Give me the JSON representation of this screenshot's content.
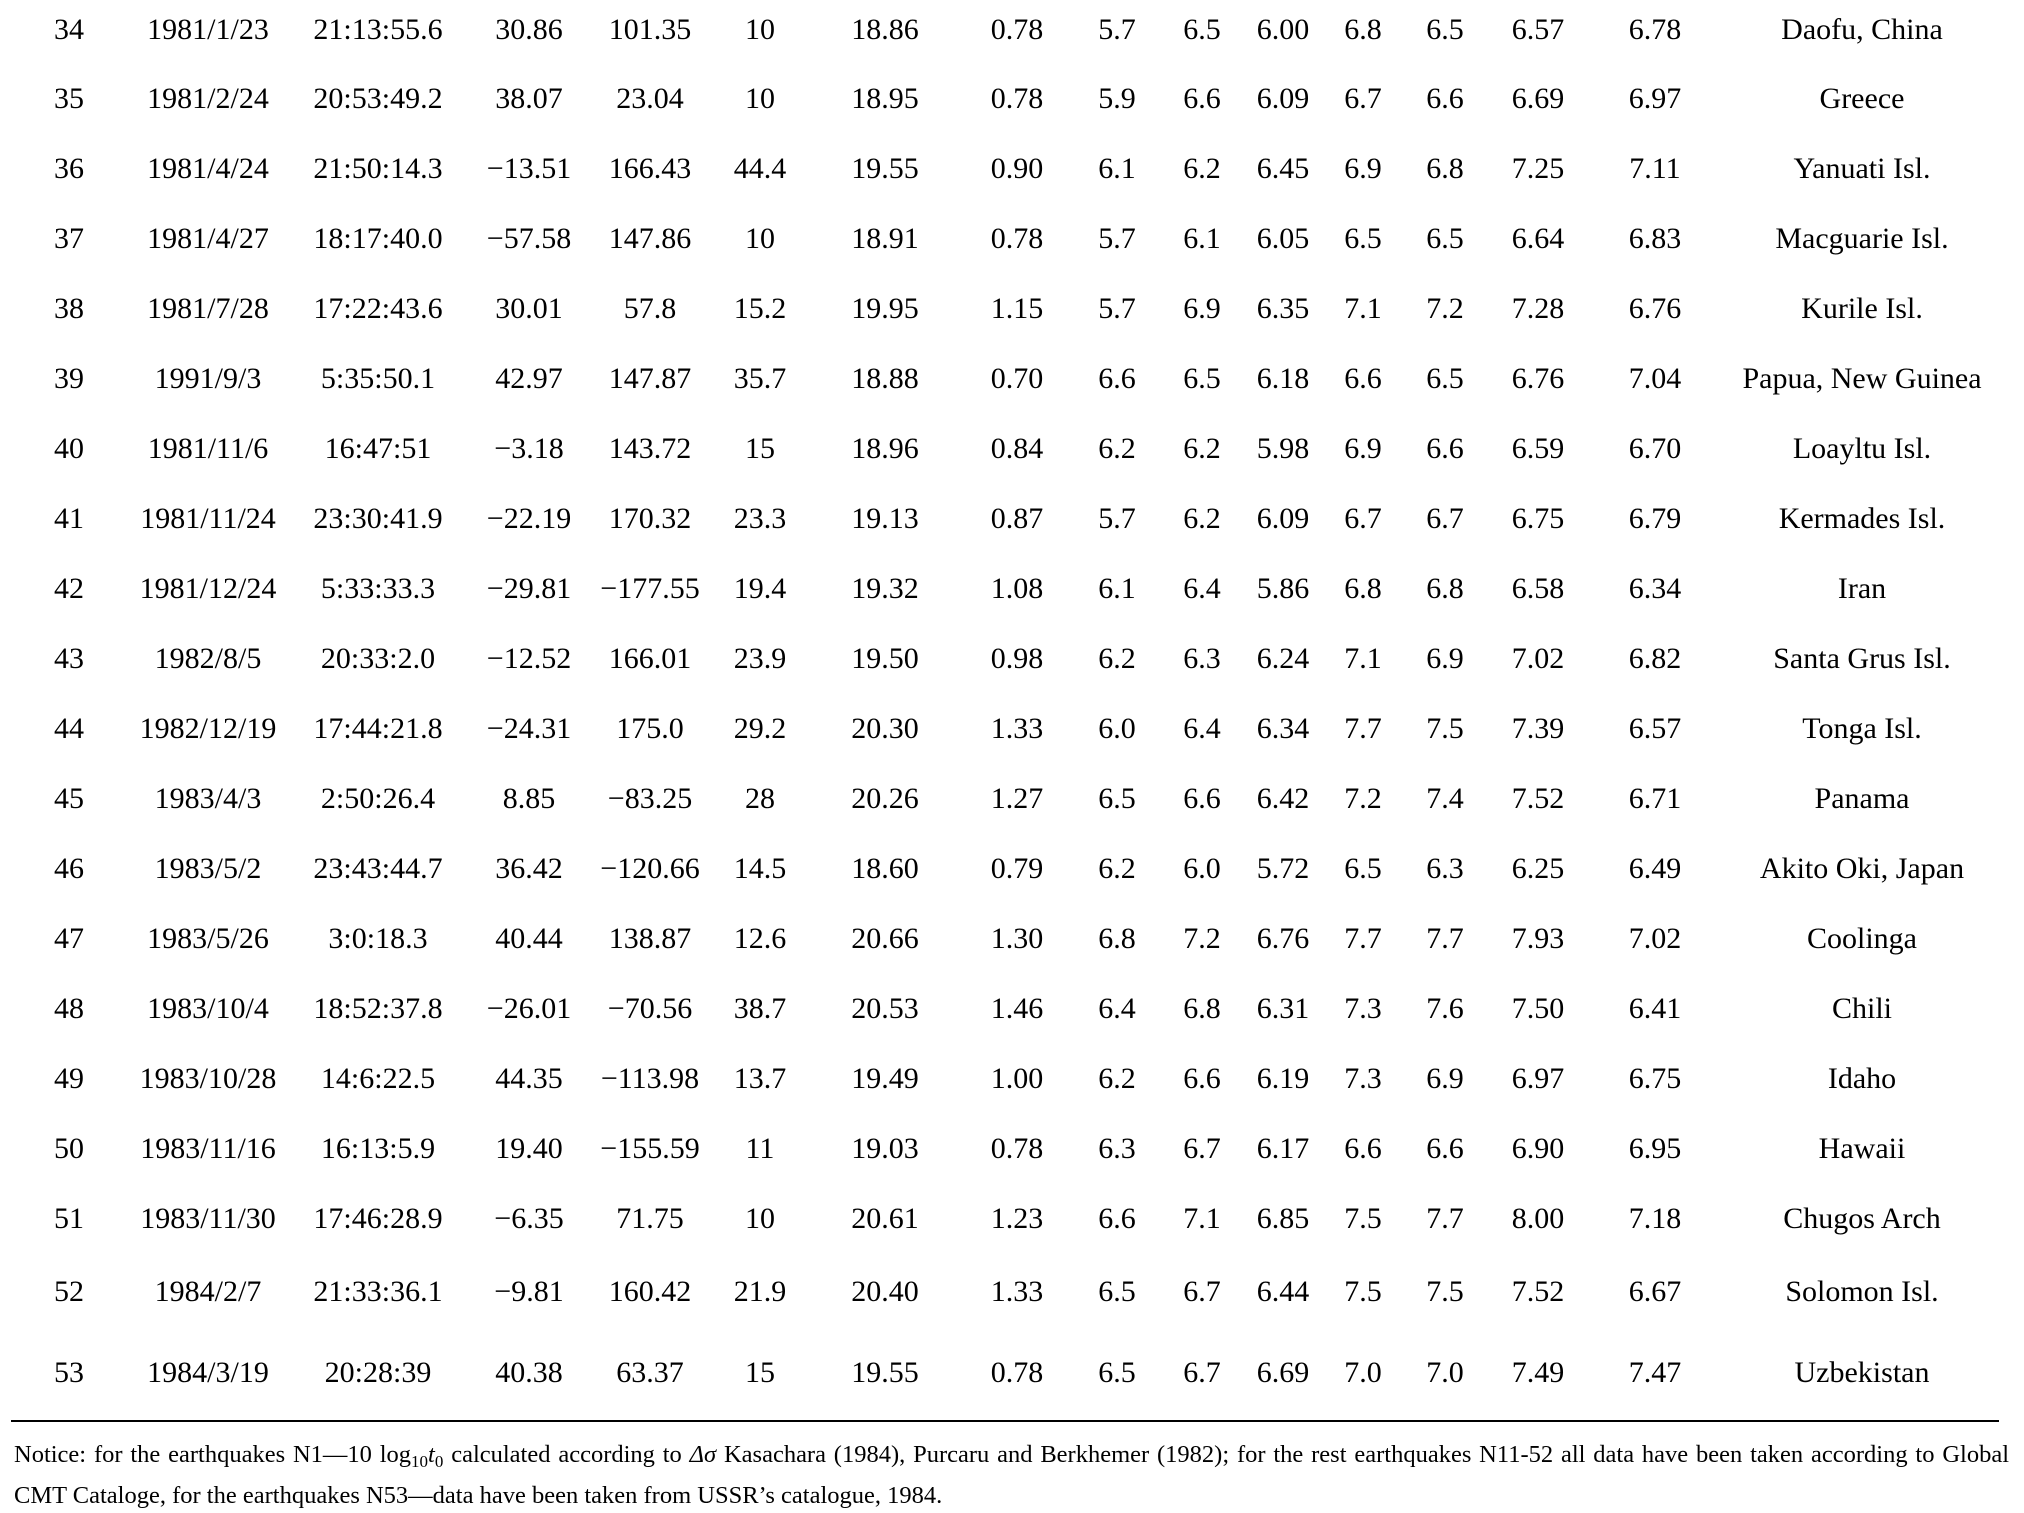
{
  "rows": [
    [
      "34",
      "1981/1/23",
      "21:13:55.6",
      "30.86",
      "101.35",
      "10",
      "18.86",
      "0.78",
      "5.7",
      "6.5",
      "6.00",
      "6.8",
      "6.5",
      "6.57",
      "6.78",
      "Daofu, China"
    ],
    [
      "35",
      "1981/2/24",
      "20:53:49.2",
      "38.07",
      "23.04",
      "10",
      "18.95",
      "0.78",
      "5.9",
      "6.6",
      "6.09",
      "6.7",
      "6.6",
      "6.69",
      "6.97",
      "Greece"
    ],
    [
      "36",
      "1981/4/24",
      "21:50:14.3",
      "−13.51",
      "166.43",
      "44.4",
      "19.55",
      "0.90",
      "6.1",
      "6.2",
      "6.45",
      "6.9",
      "6.8",
      "7.25",
      "7.11",
      "Yanuati Isl."
    ],
    [
      "37",
      "1981/4/27",
      "18:17:40.0",
      "−57.58",
      "147.86",
      "10",
      "18.91",
      "0.78",
      "5.7",
      "6.1",
      "6.05",
      "6.5",
      "6.5",
      "6.64",
      "6.83",
      "Macguarie Isl."
    ],
    [
      "38",
      "1981/7/28",
      "17:22:43.6",
      "30.01",
      "57.8",
      "15.2",
      "19.95",
      "1.15",
      "5.7",
      "6.9",
      "6.35",
      "7.1",
      "7.2",
      "7.28",
      "6.76",
      "Kurile Isl."
    ],
    [
      "39",
      "1991/9/3",
      "5:35:50.1",
      "42.97",
      "147.87",
      "35.7",
      "18.88",
      "0.70",
      "6.6",
      "6.5",
      "6.18",
      "6.6",
      "6.5",
      "6.76",
      "7.04",
      "Papua, New Guinea"
    ],
    [
      "40",
      "1981/11/6",
      "16:47:51",
      "−3.18",
      "143.72",
      "15",
      "18.96",
      "0.84",
      "6.2",
      "6.2",
      "5.98",
      "6.9",
      "6.6",
      "6.59",
      "6.70",
      "Loayltu Isl."
    ],
    [
      "41",
      "1981/11/24",
      "23:30:41.9",
      "−22.19",
      "170.32",
      "23.3",
      "19.13",
      "0.87",
      "5.7",
      "6.2",
      "6.09",
      "6.7",
      "6.7",
      "6.75",
      "6.79",
      "Kermades Isl."
    ],
    [
      "42",
      "1981/12/24",
      "5:33:33.3",
      "−29.81",
      "−177.55",
      "19.4",
      "19.32",
      "1.08",
      "6.1",
      "6.4",
      "5.86",
      "6.8",
      "6.8",
      "6.58",
      "6.34",
      "Iran"
    ],
    [
      "43",
      "1982/8/5",
      "20:33:2.0",
      "−12.52",
      "166.01",
      "23.9",
      "19.50",
      "0.98",
      "6.2",
      "6.3",
      "6.24",
      "7.1",
      "6.9",
      "7.02",
      "6.82",
      "Santa Grus Isl."
    ],
    [
      "44",
      "1982/12/19",
      "17:44:21.8",
      "−24.31",
      "175.0",
      "29.2",
      "20.30",
      "1.33",
      "6.0",
      "6.4",
      "6.34",
      "7.7",
      "7.5",
      "7.39",
      "6.57",
      "Tonga Isl."
    ],
    [
      "45",
      "1983/4/3",
      "2:50:26.4",
      "8.85",
      "−83.25",
      "28",
      "20.26",
      "1.27",
      "6.5",
      "6.6",
      "6.42",
      "7.2",
      "7.4",
      "7.52",
      "6.71",
      "Panama"
    ],
    [
      "46",
      "1983/5/2",
      "23:43:44.7",
      "36.42",
      "−120.66",
      "14.5",
      "18.60",
      "0.79",
      "6.2",
      "6.0",
      "5.72",
      "6.5",
      "6.3",
      "6.25",
      "6.49",
      "Akito Oki, Japan"
    ],
    [
      "47",
      "1983/5/26",
      "3:0:18.3",
      "40.44",
      "138.87",
      "12.6",
      "20.66",
      "1.30",
      "6.8",
      "7.2",
      "6.76",
      "7.7",
      "7.7",
      "7.93",
      "7.02",
      "Coolinga"
    ],
    [
      "48",
      "1983/10/4",
      "18:52:37.8",
      "−26.01",
      "−70.56",
      "38.7",
      "20.53",
      "1.46",
      "6.4",
      "6.8",
      "6.31",
      "7.3",
      "7.6",
      "7.50",
      "6.41",
      "Chili"
    ],
    [
      "49",
      "1983/10/28",
      "14:6:22.5",
      "44.35",
      "−113.98",
      "13.7",
      "19.49",
      "1.00",
      "6.2",
      "6.6",
      "6.19",
      "7.3",
      "6.9",
      "6.97",
      "6.75",
      "Idaho"
    ],
    [
      "50",
      "1983/11/16",
      "16:13:5.9",
      "19.40",
      "−155.59",
      "11",
      "19.03",
      "0.78",
      "6.3",
      "6.7",
      "6.17",
      "6.6",
      "6.6",
      "6.90",
      "6.95",
      "Hawaii"
    ],
    [
      "51",
      "1983/11/30",
      "17:46:28.9",
      "−6.35",
      "71.75",
      "10",
      "20.61",
      "1.23",
      "6.6",
      "7.1",
      "6.85",
      "7.5",
      "7.7",
      "8.00",
      "7.18",
      "Chugos Arch"
    ],
    [
      "52",
      "1984/2/7",
      "21:33:36.1",
      "−9.81",
      "160.42",
      "21.9",
      "20.40",
      "1.33",
      "6.5",
      "6.7",
      "6.44",
      "7.5",
      "7.5",
      "7.52",
      "6.67",
      "Solomon Isl."
    ],
    [
      "53",
      "1984/3/19",
      "20:28:39",
      "40.38",
      "63.37",
      "15",
      "19.55",
      "0.78",
      "6.5",
      "6.7",
      "6.69",
      "7.0",
      "7.0",
      "7.49",
      "7.47",
      "Uzbekistan"
    ]
  ],
  "notice": {
    "part1": "Notice: for the earthquakes N1—10 log",
    "sub1": "10",
    "var_t": "t",
    "sub2": "0",
    "part2": " calculated according to ",
    "delta_sigma": "Δσ",
    "part3": " Kasachara (1984), Purcaru and Berkhemer (1982); for the rest earthquakes N11-52 all data have been taken according to Global CMT Cataloge, for the earthquakes N53—data have been taken from USSR’s catalogue, 1984."
  }
}
